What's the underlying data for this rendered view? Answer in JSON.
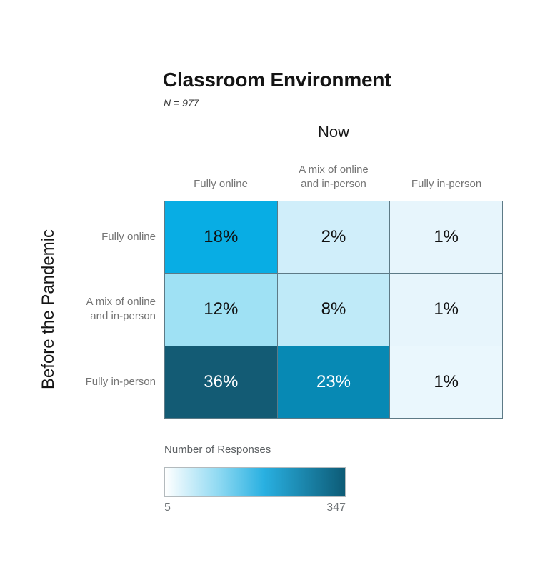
{
  "title": "Classroom Environment",
  "subtitle": "N = 977",
  "chart_data": {
    "type": "heatmap",
    "title": "Classroom Environment",
    "subtitle": "N = 977",
    "n_total": 977,
    "x_axis_title": "Now",
    "y_axis_title": "Before the Pandemic",
    "columns": [
      "Fully online",
      "A mix of online\nand in-person",
      "Fully in-person"
    ],
    "rows": [
      "Fully online",
      "A mix of online\nand in-person",
      "Fully in-person"
    ],
    "values_percent": [
      [
        18,
        2,
        1
      ],
      [
        12,
        8,
        1
      ],
      [
        36,
        23,
        1
      ]
    ],
    "grid_line_color": "#5d7a86",
    "cells": [
      {
        "label": "18%",
        "percent": 18,
        "bg": "#08ade4",
        "fg": "#111111"
      },
      {
        "label": "2%",
        "percent": 2,
        "bg": "#d0eefa",
        "fg": "#111111"
      },
      {
        "label": "1%",
        "percent": 1,
        "bg": "#e7f5fc",
        "fg": "#111111"
      },
      {
        "label": "12%",
        "percent": 12,
        "bg": "#9fe1f4",
        "fg": "#111111"
      },
      {
        "label": "8%",
        "percent": 8,
        "bg": "#bfeaf8",
        "fg": "#111111"
      },
      {
        "label": "1%",
        "percent": 1,
        "bg": "#e7f5fc",
        "fg": "#111111"
      },
      {
        "label": "36%",
        "percent": 36,
        "bg": "#135b74",
        "fg": "#ffffff"
      },
      {
        "label": "23%",
        "percent": 23,
        "bg": "#0789b4",
        "fg": "#ffffff"
      },
      {
        "label": "1%",
        "percent": 1,
        "bg": "#eaf7fd",
        "fg": "#111111"
      }
    ],
    "legend": {
      "title": "Number of Responses",
      "min_label": "5",
      "max_label": "347",
      "min_value": 5,
      "max_value": 347,
      "gradient_stops": [
        "#ffffff 0%",
        "#8ed9f2 30%",
        "#29b0e1 55%",
        "#0d5b76 100%"
      ]
    }
  }
}
